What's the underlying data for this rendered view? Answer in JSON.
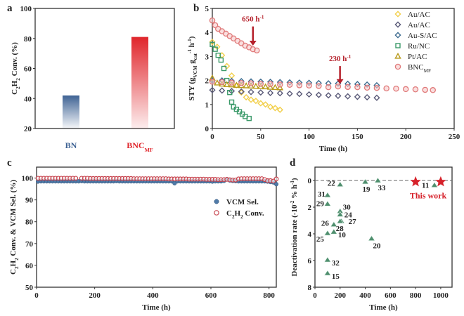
{
  "chart_data": [
    {
      "panel": "a",
      "type": "bar",
      "categories": [
        "BN",
        "BNC_MF"
      ],
      "category_labels": [
        [
          [
            "BN",
            ""
          ]
        ],
        [
          [
            "BNC",
            ""
          ],
          [
            "MF",
            "sub"
          ]
        ]
      ],
      "values": [
        42,
        81
      ],
      "colors": [
        "#3f6394",
        "#e0252b"
      ],
      "ylabel": [
        [
          "C",
          ""
        ],
        [
          "2",
          "sub"
        ],
        [
          "H",
          ""
        ],
        [
          "2",
          "sub"
        ],
        [
          " Conv. (%)",
          ""
        ]
      ],
      "ylim": [
        20,
        100
      ],
      "yticks": [
        20,
        40,
        60,
        80,
        100
      ]
    },
    {
      "panel": "b",
      "type": "scatter",
      "xlabel": "Time (h)",
      "ylabel": [
        [
          "STY (g",
          ""
        ],
        [
          "VCM",
          "sub"
        ],
        [
          " g",
          ""
        ],
        [
          "cat",
          "sub"
        ],
        [
          "-1",
          "sup"
        ],
        [
          " h",
          ""
        ],
        [
          "-1",
          "sup"
        ],
        [
          ")",
          ""
        ]
      ],
      "xlim": [
        0,
        250
      ],
      "ylim": [
        0,
        5
      ],
      "xticks": [
        0,
        50,
        100,
        150,
        200,
        250
      ],
      "yticks": [
        0,
        1,
        2,
        3,
        4,
        5
      ],
      "legend_position": "top-right",
      "series": [
        {
          "name": "Au/AC",
          "label": [
            [
              "Au/AC",
              ""
            ]
          ],
          "marker": "diamond",
          "color": "#f2cf4a",
          "legend": true,
          "points": [
            [
              0,
              3.6
            ],
            [
              5,
              3.4
            ],
            [
              10,
              3.05
            ],
            [
              15,
              2.6
            ],
            [
              20,
              2.2
            ],
            [
              25,
              1.8
            ],
            [
              30,
              1.5
            ],
            [
              35,
              1.3
            ],
            [
              40,
              1.2
            ],
            [
              45,
              1.15
            ],
            [
              50,
              1.05
            ],
            [
              55,
              1.0
            ],
            [
              60,
              0.9
            ],
            [
              65,
              0.85
            ],
            [
              70,
              0.78
            ]
          ]
        },
        {
          "name": "Au/AC",
          "label": [
            [
              "Au/AC",
              ""
            ]
          ],
          "marker": "diamond",
          "color": "#5a5a78",
          "legend": true,
          "points": [
            [
              0,
              1.6
            ],
            [
              10,
              1.58
            ],
            [
              20,
              1.56
            ],
            [
              30,
              1.54
            ],
            [
              40,
              1.52
            ],
            [
              50,
              1.5
            ],
            [
              60,
              1.48
            ],
            [
              70,
              1.47
            ],
            [
              80,
              1.45
            ],
            [
              90,
              1.44
            ],
            [
              100,
              1.42
            ],
            [
              110,
              1.4
            ],
            [
              120,
              1.38
            ],
            [
              130,
              1.36
            ],
            [
              140,
              1.34
            ],
            [
              150,
              1.32
            ],
            [
              160,
              1.3
            ],
            [
              170,
              1.28
            ]
          ]
        },
        {
          "name": "Au-S/AC",
          "label": [
            [
              "Au-S/AC",
              ""
            ]
          ],
          "marker": "diamond",
          "color": "#3d6b8f",
          "legend": true,
          "points": [
            [
              0,
              2.0
            ],
            [
              10,
              2.0
            ],
            [
              20,
              1.98
            ],
            [
              30,
              1.97
            ],
            [
              40,
              1.96
            ],
            [
              50,
              1.95
            ],
            [
              60,
              1.94
            ],
            [
              70,
              1.93
            ],
            [
              80,
              1.92
            ],
            [
              90,
              1.91
            ],
            [
              100,
              1.9
            ],
            [
              110,
              1.89
            ],
            [
              120,
              1.88
            ],
            [
              130,
              1.87
            ],
            [
              140,
              1.86
            ],
            [
              150,
              1.85
            ],
            [
              160,
              1.83
            ],
            [
              170,
              1.8
            ]
          ]
        },
        {
          "name": "Ru/NC",
          "label": [
            [
              "Ru/NC",
              ""
            ]
          ],
          "marker": "square",
          "color": "#3c9a6a",
          "legend": true,
          "points": [
            [
              0,
              3.5
            ],
            [
              3,
              3.3
            ],
            [
              6,
              3.05
            ],
            [
              9,
              2.85
            ],
            [
              12,
              2.5
            ],
            [
              15,
              2.0
            ],
            [
              18,
              1.5
            ],
            [
              20,
              1.1
            ],
            [
              22,
              0.9
            ],
            [
              25,
              0.8
            ],
            [
              28,
              0.7
            ],
            [
              31,
              0.6
            ],
            [
              34,
              0.5
            ],
            [
              38,
              0.42
            ]
          ]
        },
        {
          "name": "Pt/AC",
          "label": [
            [
              "Pt/AC",
              ""
            ]
          ],
          "marker": "triangle",
          "color": "#b89a1a",
          "legend": true,
          "points": [
            [
              0,
              2.1
            ],
            [
              5,
              1.9
            ],
            [
              10,
              1.85
            ],
            [
              15,
              1.83
            ],
            [
              20,
              1.82
            ],
            [
              25,
              1.8
            ],
            [
              30,
              1.79
            ],
            [
              35,
              1.78
            ],
            [
              40,
              1.77
            ],
            [
              45,
              1.76
            ],
            [
              50,
              1.75
            ],
            [
              55,
              1.74
            ],
            [
              60,
              1.72
            ],
            [
              65,
              1.71
            ],
            [
              70,
              1.7
            ]
          ]
        },
        {
          "name": "BNC_MF",
          "label": [
            [
              "BNC",
              ""
            ],
            [
              "MF",
              "sub"
            ]
          ],
          "marker": "circle",
          "color": "#e07a7a",
          "legend": true,
          "points": [
            [
              0,
              4.5
            ],
            [
              3,
              4.3
            ],
            [
              6,
              4.15
            ],
            [
              10,
              4.05
            ],
            [
              14,
              3.95
            ],
            [
              18,
              3.85
            ],
            [
              22,
              3.75
            ],
            [
              26,
              3.65
            ],
            [
              30,
              3.55
            ],
            [
              34,
              3.45
            ],
            [
              38,
              3.38
            ],
            [
              42,
              3.3
            ],
            [
              46,
              3.25
            ]
          ]
        },
        {
          "name": "BNC_MF",
          "label": [
            [
              "BNC",
              ""
            ],
            [
              "MF",
              "sub"
            ]
          ],
          "marker": "circle",
          "color": "#e07a7a",
          "legend": false,
          "points": [
            [
              0,
              1.95
            ],
            [
              10,
              1.93
            ],
            [
              20,
              1.91
            ],
            [
              30,
              1.89
            ],
            [
              40,
              1.88
            ],
            [
              50,
              1.86
            ],
            [
              60,
              1.85
            ],
            [
              70,
              1.83
            ],
            [
              80,
              1.82
            ],
            [
              90,
              1.8
            ],
            [
              100,
              1.79
            ],
            [
              110,
              1.77
            ],
            [
              120,
              1.72
            ],
            [
              130,
              1.75
            ],
            [
              140,
              1.73
            ],
            [
              150,
              1.72
            ],
            [
              160,
              1.7
            ],
            [
              170,
              1.69
            ],
            [
              180,
              1.67
            ],
            [
              190,
              1.66
            ],
            [
              200,
              1.64
            ],
            [
              210,
              1.63
            ],
            [
              220,
              1.61
            ],
            [
              228,
              1.6
            ]
          ]
        }
      ],
      "annotations": [
        {
          "text": "650 h",
          "sup": "-1",
          "x": 42,
          "y_from": 4.25,
          "y_to": 3.45
        },
        {
          "text": "230 h",
          "sup": "-1",
          "x": 132,
          "y_from": 2.6,
          "y_to": 1.85
        }
      ]
    },
    {
      "panel": "c",
      "type": "scatter",
      "xlabel": "Time (h)",
      "ylabel": [
        [
          "C",
          ""
        ],
        [
          "2",
          "sub"
        ],
        [
          "H",
          ""
        ],
        [
          "2",
          "sub"
        ],
        [
          " Conv. & VCM Sel. (%)",
          ""
        ]
      ],
      "xlim": [
        0,
        825
      ],
      "ylim": [
        50,
        105
      ],
      "xticks": [
        0,
        200,
        400,
        600,
        800
      ],
      "yticks": [
        50,
        60,
        70,
        80,
        90,
        100
      ],
      "legend_position": "center-right",
      "x_start": 5,
      "x_step": 10,
      "series": [
        {
          "name": "VCM Sel.",
          "label": [
            [
              "VCM Sel.",
              ""
            ]
          ],
          "marker": "filled-circle",
          "color": "#4f7aa8",
          "values": [
            98.4,
            98.5,
            98.5,
            98.5,
            98.5,
            98.5,
            98.5,
            98.5,
            98.5,
            98.5,
            98.5,
            98.5,
            98.5,
            98.5,
            98.5,
            98.6,
            98.5,
            98.5,
            98.5,
            98.5,
            98.5,
            98.5,
            98.5,
            98.5,
            98.5,
            98.5,
            98.5,
            98.6,
            98.5,
            98.5,
            98.5,
            98.5,
            98.5,
            98.5,
            98.5,
            98.5,
            98.5,
            98.5,
            98.5,
            98.5,
            98.5,
            98.5,
            98.5,
            98.5,
            98.5,
            98.5,
            98.5,
            97.6,
            98.5,
            98.5,
            98.5,
            98.5,
            98.5,
            98.5,
            98.5,
            98.5,
            98.5,
            98.5,
            98.5,
            98.5,
            98.4,
            98.5,
            98.5,
            98.5,
            98.7,
            99.5,
            98.9,
            98.7,
            98.6,
            98.5,
            98.5,
            98.5,
            98.5,
            98.5,
            98.5,
            98.5,
            98.5,
            98.5,
            98.5,
            98.4,
            98.2,
            98.0,
            97.2
          ]
        },
        {
          "name": "C2H2 Conv.",
          "label": [
            [
              "C",
              ""
            ],
            [
              "2",
              "sub"
            ],
            [
              "H",
              ""
            ],
            [
              "2",
              "sub"
            ],
            [
              " Conv.",
              ""
            ]
          ],
          "marker": "open-circle",
          "color": "#c7454f",
          "values": [
            99.9,
            99.9,
            99.9,
            99.9,
            99.9,
            99.9,
            99.9,
            99.9,
            99.9,
            99.9,
            99.9,
            99.9,
            99.9,
            99.9,
            null,
            99.9,
            99.9,
            99.9,
            99.8,
            99.8,
            99.8,
            99.8,
            99.8,
            99.8,
            99.8,
            99.8,
            99.8,
            99.8,
            99.8,
            99.8,
            99.8,
            99.8,
            99.8,
            99.7,
            99.7,
            99.7,
            99.7,
            99.7,
            99.7,
            99.7,
            99.7,
            99.7,
            99.7,
            99.7,
            99.7,
            99.6,
            99.6,
            99.6,
            99.6,
            99.6,
            99.6,
            99.6,
            99.5,
            99.5,
            99.5,
            99.5,
            99.5,
            99.5,
            99.4,
            99.4,
            99.4,
            99.4,
            99.3,
            99.3,
            99.3,
            99.4,
            99.2,
            99.1,
            99.1,
            99.6,
            99.7,
            99.7,
            99.7,
            99.7,
            99.7,
            99.7,
            99.7,
            99.7,
            99.3,
            98.8,
            98.8,
            98.6,
            99.6
          ]
        }
      ]
    },
    {
      "panel": "d",
      "type": "scatter",
      "xlabel": "Time (h)",
      "ylabel": [
        [
          "Deactivation rate (-10",
          ""
        ],
        [
          "-2",
          "sup"
        ],
        [
          " % h",
          ""
        ],
        [
          "-1",
          "sup"
        ],
        [
          ")",
          ""
        ]
      ],
      "xlim": [
        0,
        1090
      ],
      "ylim": [
        -1,
        8
      ],
      "y_inverted": true,
      "xticks": [
        0,
        200,
        400,
        600,
        800,
        1000
      ],
      "yticks": [
        0,
        2,
        4,
        6,
        8
      ],
      "reference_line_y": 0,
      "points": [
        {
          "x": 100,
          "y": 1.1,
          "label": "31"
        },
        {
          "x": 100,
          "y": 1.75,
          "label": "29"
        },
        {
          "x": 200,
          "y": 0.3,
          "label": "22"
        },
        {
          "x": 200,
          "y": 2.3,
          "label": "30"
        },
        {
          "x": 200,
          "y": 2.55,
          "label": "24"
        },
        {
          "x": 210,
          "y": 3.05,
          "label": "27"
        },
        {
          "x": 150,
          "y": 3.3,
          "label": "26"
        },
        {
          "x": 200,
          "y": 3.05,
          "label": "28"
        },
        {
          "x": 100,
          "y": 3.95,
          "label": "25"
        },
        {
          "x": 150,
          "y": 3.85,
          "label": "10"
        },
        {
          "x": 450,
          "y": 4.35,
          "label": "20"
        },
        {
          "x": 100,
          "y": 5.95,
          "label": "32"
        },
        {
          "x": 100,
          "y": 6.95,
          "label": "15"
        },
        {
          "x": 400,
          "y": 0.1,
          "label": "19"
        },
        {
          "x": 500,
          "y": 0.0,
          "label": "33"
        },
        {
          "x": 950,
          "y": 0.35,
          "label": "11"
        }
      ],
      "this_work": {
        "label": "This work",
        "points": [
          [
            800,
            0.1
          ],
          [
            1000,
            0.1
          ]
        ],
        "color": "#d6212a"
      }
    }
  ],
  "panel_letters": [
    "a",
    "b",
    "c",
    "d"
  ]
}
